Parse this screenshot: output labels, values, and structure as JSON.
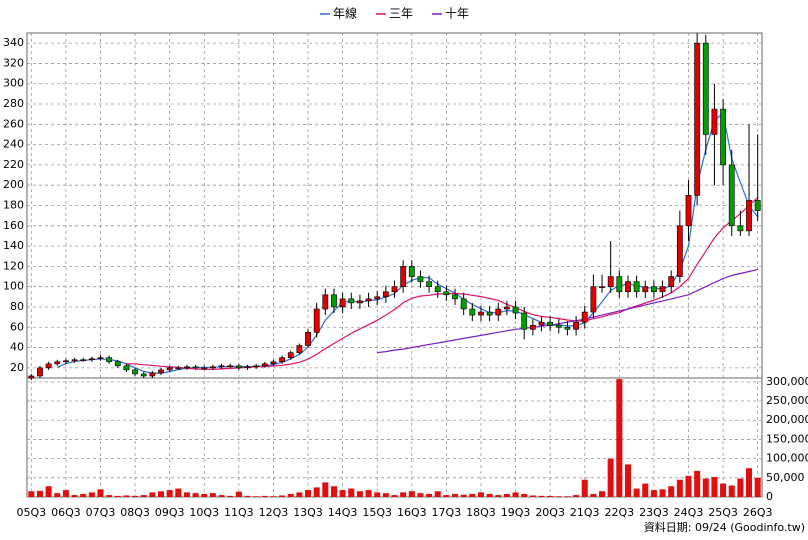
{
  "chart_data": [
    {
      "type": "candlestick",
      "up_color": "#e00000",
      "down_color": "#00a000",
      "open": [
        10,
        12,
        20,
        24,
        26,
        27,
        28,
        28,
        29,
        30,
        26,
        22,
        18,
        14,
        12,
        15,
        18,
        20,
        20,
        21,
        20,
        20,
        21,
        22,
        22,
        20,
        21,
        22,
        24,
        26,
        30,
        35,
        42,
        55,
        78,
        92,
        80,
        88,
        84,
        86,
        88,
        90,
        95,
        100,
        120,
        110,
        105,
        100,
        95,
        92,
        88,
        78,
        72,
        75,
        72,
        78,
        80,
        74,
        58,
        62,
        65,
        62,
        60,
        58,
        65,
        75,
        100,
        100,
        110,
        95,
        105,
        95,
        100,
        95,
        100,
        110,
        160,
        190,
        340,
        250,
        275,
        220,
        160,
        155,
        185
      ],
      "high": [
        14,
        22,
        26,
        28,
        29,
        30,
        30,
        31,
        33,
        32,
        28,
        24,
        20,
        16,
        17,
        20,
        22,
        22,
        23,
        23,
        22,
        23,
        24,
        24,
        24,
        23,
        24,
        26,
        28,
        32,
        37,
        44,
        58,
        84,
        98,
        98,
        94,
        94,
        92,
        94,
        96,
        101,
        106,
        126,
        126,
        116,
        111,
        106,
        101,
        98,
        94,
        84,
        81,
        81,
        84,
        86,
        86,
        80,
        68,
        71,
        71,
        68,
        66,
        71,
        81,
        112,
        112,
        145,
        116,
        111,
        111,
        106,
        106,
        106,
        116,
        175,
        205,
        350,
        348,
        300,
        285,
        235,
        175,
        260,
        250
      ],
      "low": [
        8,
        10,
        18,
        22,
        24,
        25,
        26,
        26,
        27,
        24,
        20,
        16,
        12,
        10,
        10,
        13,
        16,
        18,
        18,
        18,
        18,
        18,
        19,
        20,
        18,
        18,
        19,
        20,
        22,
        24,
        28,
        33,
        40,
        50,
        72,
        74,
        74,
        78,
        78,
        80,
        82,
        84,
        89,
        94,
        104,
        99,
        94,
        89,
        86,
        82,
        72,
        66,
        66,
        66,
        66,
        72,
        68,
        48,
        52,
        56,
        56,
        54,
        52,
        52,
        59,
        69,
        94,
        94,
        89,
        89,
        89,
        89,
        89,
        89,
        94,
        104,
        145,
        180,
        230,
        200,
        200,
        150,
        150,
        150,
        165
      ],
      "close": [
        12,
        20,
        24,
        26,
        27,
        28,
        28,
        29,
        30,
        26,
        22,
        18,
        14,
        12,
        15,
        18,
        20,
        20,
        21,
        20,
        20,
        21,
        22,
        22,
        20,
        21,
        22,
        24,
        26,
        30,
        35,
        42,
        55,
        78,
        92,
        80,
        88,
        84,
        86,
        88,
        90,
        95,
        100,
        120,
        110,
        105,
        100,
        95,
        92,
        88,
        78,
        72,
        75,
        72,
        78,
        80,
        74,
        58,
        62,
        65,
        62,
        60,
        58,
        65,
        75,
        100,
        100,
        110,
        95,
        105,
        95,
        100,
        95,
        100,
        110,
        160,
        190,
        340,
        250,
        275,
        220,
        160,
        155,
        185,
        175
      ],
      "series": [
        {
          "name": "年線",
          "color": "#2a6fd6",
          "values": [
            null,
            null,
            null,
            20.5,
            24.3,
            26.3,
            27.3,
            28,
            28.8,
            28.3,
            26.8,
            24,
            20,
            16.5,
            14.8,
            14.8,
            16.3,
            18.3,
            19.8,
            20.3,
            20.3,
            20.5,
            21,
            21.3,
            21.3,
            21.3,
            21.3,
            21.8,
            23.3,
            25.5,
            28.8,
            33.3,
            40.5,
            52.5,
            66.8,
            76.3,
            84.5,
            86,
            84.5,
            86.5,
            87,
            89.8,
            93.3,
            101.3,
            106.3,
            108.8,
            108.8,
            102.5,
            98,
            93.8,
            87.5,
            82.5,
            78.3,
            74.3,
            74.3,
            76.3,
            76,
            72.5,
            68.5,
            64.8,
            61.8,
            62.3,
            61.3,
            61.3,
            64.5,
            74.5,
            85,
            96.3,
            101.3,
            102.5,
            101.3,
            98.8,
            98.8,
            97.5,
            101.3,
            116.3,
            140,
            200,
            235,
            263.8,
            271.3,
            226.3,
            202.5,
            180,
            168.8
          ]
        },
        {
          "name": "三年",
          "color": "#e0106a",
          "values": [
            null,
            null,
            null,
            null,
            null,
            null,
            null,
            null,
            null,
            null,
            null,
            24,
            24,
            23,
            22.5,
            21.5,
            21,
            20.5,
            19.5,
            19,
            18.5,
            18.5,
            19,
            19.5,
            20,
            20.5,
            21,
            21.3,
            21.8,
            22.5,
            23.7,
            25.5,
            28.5,
            33.3,
            39,
            44,
            49,
            54,
            58.5,
            62.5,
            67,
            72,
            77.5,
            84,
            88.5,
            90.8,
            91.5,
            92.8,
            93.1,
            93.4,
            92.8,
            91.5,
            90.2,
            88.3,
            86.5,
            82.5,
            79.5,
            75.6,
            72.4,
            70.6,
            69.8,
            68.5,
            67.2,
            66.3,
            66.1,
            68.4,
            70.2,
            72.7,
            74.4,
            78.3,
            81,
            83.9,
            86.7,
            90,
            94,
            100,
            108,
            122,
            135,
            148,
            158,
            165,
            172,
            180,
            188
          ]
        },
        {
          "name": "十年",
          "color": "#7a1fc8",
          "values": [
            null,
            null,
            null,
            null,
            null,
            null,
            null,
            null,
            null,
            null,
            null,
            null,
            null,
            null,
            null,
            null,
            null,
            null,
            null,
            null,
            null,
            null,
            null,
            null,
            null,
            null,
            null,
            null,
            null,
            null,
            null,
            null,
            null,
            null,
            null,
            null,
            null,
            null,
            null,
            null,
            35,
            36,
            37.5,
            38.5,
            40,
            41.5,
            43,
            44.5,
            46,
            47.5,
            49,
            50.5,
            52,
            53.5,
            55,
            56.5,
            58,
            59,
            60,
            61,
            62,
            63.5,
            65,
            66.5,
            68,
            70,
            72,
            74,
            76,
            78,
            80,
            82,
            84,
            86,
            88,
            90,
            92,
            96,
            100,
            104,
            108,
            111,
            113,
            115,
            117
          ]
        }
      ],
      "ylim": [
        10,
        350
      ],
      "yticks": [
        20,
        40,
        60,
        80,
        100,
        120,
        140,
        160,
        180,
        200,
        220,
        240,
        260,
        280,
        300,
        320,
        340
      ],
      "grid": true
    },
    {
      "type": "bar",
      "color": "#e01010",
      "categories": [
        "05Q3",
        null,
        null,
        null,
        "06Q3",
        null,
        null,
        null,
        "07Q3",
        null,
        null,
        null,
        "08Q3",
        null,
        null,
        null,
        "09Q3",
        null,
        null,
        null,
        "10Q3",
        null,
        null,
        null,
        "11Q3",
        null,
        null,
        null,
        "12Q3",
        null,
        null,
        null,
        "13Q3",
        null,
        null,
        null,
        "14Q3",
        null,
        null,
        null,
        "15Q3",
        null,
        null,
        null,
        "16Q3",
        null,
        null,
        null,
        "17Q3",
        null,
        null,
        null,
        "18Q3",
        null,
        null,
        null,
        "19Q3",
        null,
        null,
        null,
        "20Q3",
        null,
        null,
        null,
        "21Q3",
        null,
        null,
        null,
        "22Q3",
        null,
        null,
        null,
        "23Q3",
        null,
        null,
        null,
        "24Q3",
        null,
        null,
        null,
        "25Q3",
        null,
        null,
        null,
        "26Q3"
      ],
      "values": [
        15000,
        16000,
        28000,
        10000,
        18000,
        5000,
        8000,
        12000,
        20000,
        5000,
        3000,
        4000,
        3000,
        5000,
        12000,
        15000,
        18000,
        22000,
        12000,
        10000,
        8000,
        10000,
        5000,
        3000,
        14000,
        3000,
        2000,
        3000,
        2000,
        4000,
        8000,
        12000,
        18000,
        25000,
        38000,
        28000,
        18000,
        22000,
        15000,
        18000,
        12000,
        10000,
        5000,
        12000,
        15000,
        10000,
        8000,
        15000,
        5000,
        8000,
        6000,
        8000,
        12000,
        8000,
        5000,
        8000,
        12000,
        8000,
        4000,
        3000,
        3000,
        2000,
        2000,
        5000,
        45000,
        8000,
        15000,
        100000,
        307000,
        85000,
        22000,
        35000,
        18000,
        20000,
        28000,
        45000,
        55000,
        68000,
        48000,
        52000,
        35000,
        30000,
        48000,
        75000,
        50000
      ],
      "ylim": [
        0,
        310000
      ],
      "yticks": [
        0,
        {
          "value": 50000,
          "label": "50,000"
        },
        {
          "value": 100000,
          "label": "100,000"
        },
        {
          "value": 150000,
          "label": "150,000"
        },
        {
          "value": 200000,
          "label": "200,000"
        },
        {
          "value": 250000,
          "label": "250,000"
        },
        {
          "value": 300000,
          "label": "300,000"
        }
      ],
      "grid": true,
      "source": "資料日期: 09/24  (Goodinfo.tw)"
    }
  ]
}
